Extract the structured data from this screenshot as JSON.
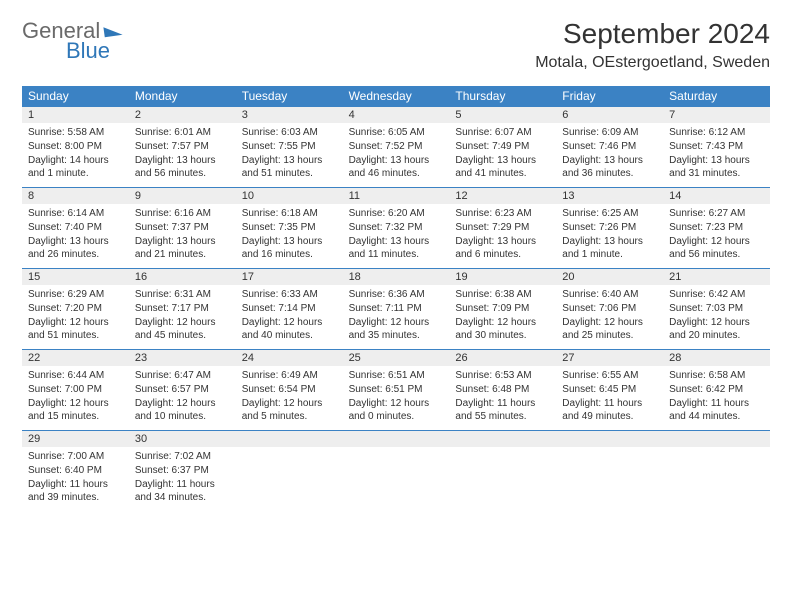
{
  "logo": {
    "general": "General",
    "blue": "Blue"
  },
  "title": "September 2024",
  "location": "Motala, OEstergoetland, Sweden",
  "colors": {
    "header_bar": "#3b82c4",
    "band": "#eeeeee",
    "text": "#333333",
    "logo_gray": "#6a6a6a",
    "logo_blue": "#2f77b8"
  },
  "daysOfWeek": [
    "Sunday",
    "Monday",
    "Tuesday",
    "Wednesday",
    "Thursday",
    "Friday",
    "Saturday"
  ],
  "weeks": [
    [
      {
        "n": "1",
        "sr": "Sunrise: 5:58 AM",
        "ss": "Sunset: 8:00 PM",
        "dl": "Daylight: 14 hours and 1 minute."
      },
      {
        "n": "2",
        "sr": "Sunrise: 6:01 AM",
        "ss": "Sunset: 7:57 PM",
        "dl": "Daylight: 13 hours and 56 minutes."
      },
      {
        "n": "3",
        "sr": "Sunrise: 6:03 AM",
        "ss": "Sunset: 7:55 PM",
        "dl": "Daylight: 13 hours and 51 minutes."
      },
      {
        "n": "4",
        "sr": "Sunrise: 6:05 AM",
        "ss": "Sunset: 7:52 PM",
        "dl": "Daylight: 13 hours and 46 minutes."
      },
      {
        "n": "5",
        "sr": "Sunrise: 6:07 AM",
        "ss": "Sunset: 7:49 PM",
        "dl": "Daylight: 13 hours and 41 minutes."
      },
      {
        "n": "6",
        "sr": "Sunrise: 6:09 AM",
        "ss": "Sunset: 7:46 PM",
        "dl": "Daylight: 13 hours and 36 minutes."
      },
      {
        "n": "7",
        "sr": "Sunrise: 6:12 AM",
        "ss": "Sunset: 7:43 PM",
        "dl": "Daylight: 13 hours and 31 minutes."
      }
    ],
    [
      {
        "n": "8",
        "sr": "Sunrise: 6:14 AM",
        "ss": "Sunset: 7:40 PM",
        "dl": "Daylight: 13 hours and 26 minutes."
      },
      {
        "n": "9",
        "sr": "Sunrise: 6:16 AM",
        "ss": "Sunset: 7:37 PM",
        "dl": "Daylight: 13 hours and 21 minutes."
      },
      {
        "n": "10",
        "sr": "Sunrise: 6:18 AM",
        "ss": "Sunset: 7:35 PM",
        "dl": "Daylight: 13 hours and 16 minutes."
      },
      {
        "n": "11",
        "sr": "Sunrise: 6:20 AM",
        "ss": "Sunset: 7:32 PM",
        "dl": "Daylight: 13 hours and 11 minutes."
      },
      {
        "n": "12",
        "sr": "Sunrise: 6:23 AM",
        "ss": "Sunset: 7:29 PM",
        "dl": "Daylight: 13 hours and 6 minutes."
      },
      {
        "n": "13",
        "sr": "Sunrise: 6:25 AM",
        "ss": "Sunset: 7:26 PM",
        "dl": "Daylight: 13 hours and 1 minute."
      },
      {
        "n": "14",
        "sr": "Sunrise: 6:27 AM",
        "ss": "Sunset: 7:23 PM",
        "dl": "Daylight: 12 hours and 56 minutes."
      }
    ],
    [
      {
        "n": "15",
        "sr": "Sunrise: 6:29 AM",
        "ss": "Sunset: 7:20 PM",
        "dl": "Daylight: 12 hours and 51 minutes."
      },
      {
        "n": "16",
        "sr": "Sunrise: 6:31 AM",
        "ss": "Sunset: 7:17 PM",
        "dl": "Daylight: 12 hours and 45 minutes."
      },
      {
        "n": "17",
        "sr": "Sunrise: 6:33 AM",
        "ss": "Sunset: 7:14 PM",
        "dl": "Daylight: 12 hours and 40 minutes."
      },
      {
        "n": "18",
        "sr": "Sunrise: 6:36 AM",
        "ss": "Sunset: 7:11 PM",
        "dl": "Daylight: 12 hours and 35 minutes."
      },
      {
        "n": "19",
        "sr": "Sunrise: 6:38 AM",
        "ss": "Sunset: 7:09 PM",
        "dl": "Daylight: 12 hours and 30 minutes."
      },
      {
        "n": "20",
        "sr": "Sunrise: 6:40 AM",
        "ss": "Sunset: 7:06 PM",
        "dl": "Daylight: 12 hours and 25 minutes."
      },
      {
        "n": "21",
        "sr": "Sunrise: 6:42 AM",
        "ss": "Sunset: 7:03 PM",
        "dl": "Daylight: 12 hours and 20 minutes."
      }
    ],
    [
      {
        "n": "22",
        "sr": "Sunrise: 6:44 AM",
        "ss": "Sunset: 7:00 PM",
        "dl": "Daylight: 12 hours and 15 minutes."
      },
      {
        "n": "23",
        "sr": "Sunrise: 6:47 AM",
        "ss": "Sunset: 6:57 PM",
        "dl": "Daylight: 12 hours and 10 minutes."
      },
      {
        "n": "24",
        "sr": "Sunrise: 6:49 AM",
        "ss": "Sunset: 6:54 PM",
        "dl": "Daylight: 12 hours and 5 minutes."
      },
      {
        "n": "25",
        "sr": "Sunrise: 6:51 AM",
        "ss": "Sunset: 6:51 PM",
        "dl": "Daylight: 12 hours and 0 minutes."
      },
      {
        "n": "26",
        "sr": "Sunrise: 6:53 AM",
        "ss": "Sunset: 6:48 PM",
        "dl": "Daylight: 11 hours and 55 minutes."
      },
      {
        "n": "27",
        "sr": "Sunrise: 6:55 AM",
        "ss": "Sunset: 6:45 PM",
        "dl": "Daylight: 11 hours and 49 minutes."
      },
      {
        "n": "28",
        "sr": "Sunrise: 6:58 AM",
        "ss": "Sunset: 6:42 PM",
        "dl": "Daylight: 11 hours and 44 minutes."
      }
    ],
    [
      {
        "n": "29",
        "sr": "Sunrise: 7:00 AM",
        "ss": "Sunset: 6:40 PM",
        "dl": "Daylight: 11 hours and 39 minutes."
      },
      {
        "n": "30",
        "sr": "Sunrise: 7:02 AM",
        "ss": "Sunset: 6:37 PM",
        "dl": "Daylight: 11 hours and 34 minutes."
      },
      null,
      null,
      null,
      null,
      null
    ]
  ]
}
